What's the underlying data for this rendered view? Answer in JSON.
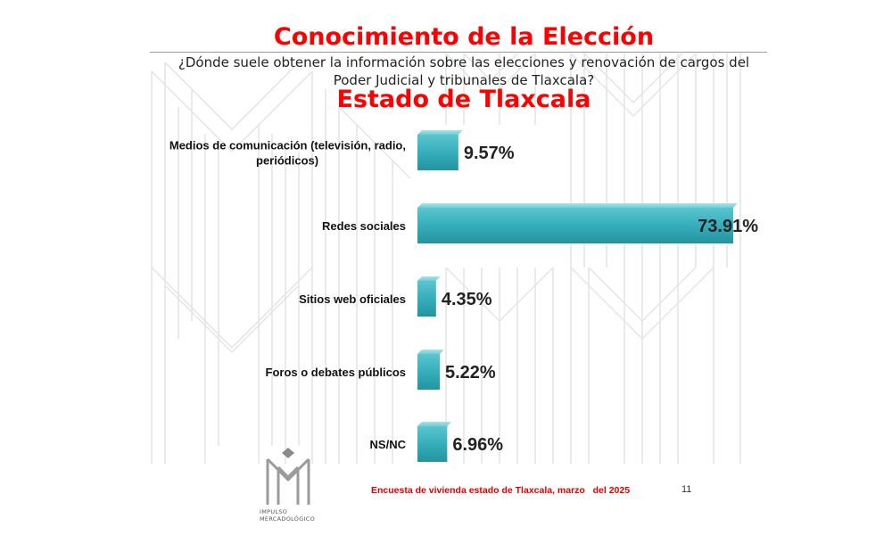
{
  "header": {
    "title": "Conocimiento de la Elección",
    "question_line1": "¿Dónde suele obtener la información sobre las elecciones y renovación de cargos del",
    "question_line2": "Poder Judicial y tribunales de Tlaxcala?",
    "subtitle": "Estado de Tlaxcala"
  },
  "chart_data": {
    "type": "bar",
    "orientation": "horizontal",
    "categories": [
      "Medios de comunicación (televisión, radio, periódicos)",
      "Redes sociales",
      "Sitios web oficiales",
      "Foros o debates públicos",
      "NS/NC"
    ],
    "category_lines": [
      [
        "Medios de comunicación (televisión, radio,",
        "periódicos)"
      ],
      [
        "Redes sociales"
      ],
      [
        "Sitios web oficiales"
      ],
      [
        "Foros o debates públicos"
      ],
      [
        "NS/NC"
      ]
    ],
    "values": [
      9.57,
      73.91,
      4.35,
      5.22,
      6.96
    ],
    "value_labels": [
      "9.57%",
      "73.91%",
      "4.35%",
      "5.22%",
      "6.96%"
    ],
    "xlim": [
      0,
      73.91
    ],
    "grid": false,
    "bar_color": "#35aebb"
  },
  "footer": {
    "note": "Encuesta de vivienda estado de Tlaxcala, marzo   del 2025",
    "page_number": "11",
    "logo_line1": "IMPULSO",
    "logo_line2": "MERCADOLÓGICO"
  }
}
